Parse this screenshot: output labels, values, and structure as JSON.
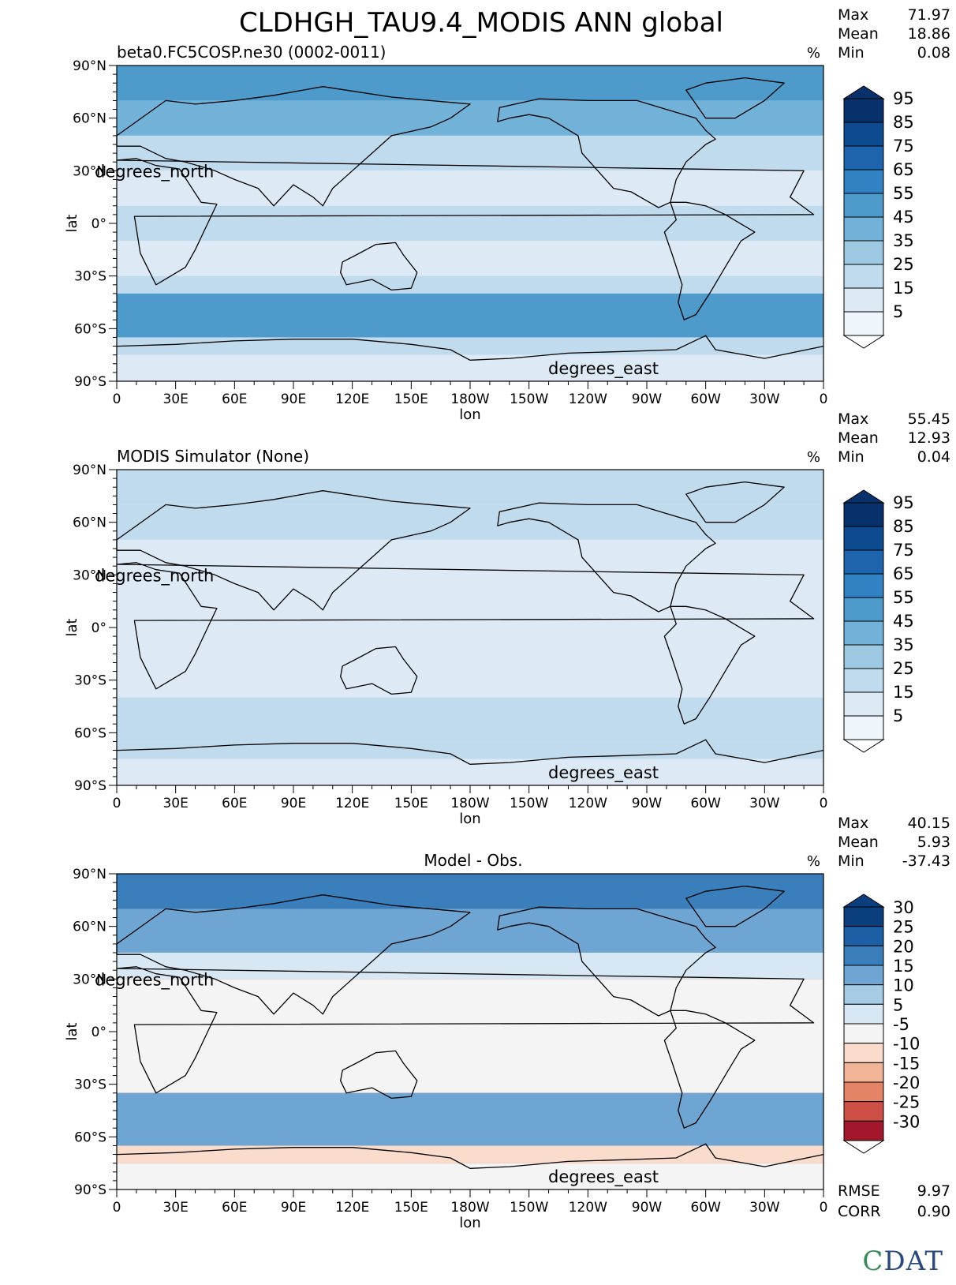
{
  "figure": {
    "title": "CLDHGH_TAU9.4_MODIS ANN global",
    "logo_letters": [
      "C",
      "DAT"
    ]
  },
  "chart_data": [
    {
      "type": "heatmap",
      "subtitle": "beta0.FC5COSP.ne30 (0002-0011)",
      "units": "%",
      "stats": [
        {
          "label": "Max",
          "value": "71.97"
        },
        {
          "label": "Mean",
          "value": "18.86"
        },
        {
          "label": "Min",
          "value": "0.08"
        }
      ],
      "xlabel": "lon",
      "ylabel": "lat",
      "x_ticks": [
        "0",
        "30E",
        "60E",
        "90E",
        "120E",
        "150E",
        "180W",
        "150W",
        "120W",
        "90W",
        "60W",
        "30W",
        "0"
      ],
      "y_ticks": [
        "90°N",
        "60°N",
        "30°N",
        "0°",
        "30°S",
        "60°S",
        "90°S"
      ],
      "x_units_label": "degrees_east",
      "y_units_label": "degrees_north",
      "colorbar": {
        "levels": [
          "95",
          "85",
          "75",
          "65",
          "55",
          "45",
          "35",
          "25",
          "15",
          "5"
        ],
        "colors": [
          "#08306b",
          "#0d4a8f",
          "#1f65ad",
          "#3182c2",
          "#4e9acb",
          "#73b2d8",
          "#9dc8e2",
          "#c1dbee",
          "#dde9f5",
          "#eef5fb"
        ]
      },
      "zonal_bands": [
        {
          "lat_range": [
            70,
            90
          ],
          "value": 45
        },
        {
          "lat_range": [
            50,
            70
          ],
          "value": 35
        },
        {
          "lat_range": [
            30,
            50
          ],
          "value": 20
        },
        {
          "lat_range": [
            10,
            30
          ],
          "value": 10
        },
        {
          "lat_range": [
            -10,
            10
          ],
          "value": 15
        },
        {
          "lat_range": [
            -30,
            -10
          ],
          "value": 10
        },
        {
          "lat_range": [
            -40,
            -30
          ],
          "value": 20
        },
        {
          "lat_range": [
            -65,
            -40
          ],
          "value": 45
        },
        {
          "lat_range": [
            -75,
            -65
          ],
          "value": 20
        },
        {
          "lat_range": [
            -90,
            -75
          ],
          "value": 5
        }
      ]
    },
    {
      "type": "heatmap",
      "subtitle": "MODIS Simulator (None)",
      "units": "%",
      "stats": [
        {
          "label": "Max",
          "value": "55.45"
        },
        {
          "label": "Mean",
          "value": "12.93"
        },
        {
          "label": "Min",
          "value": "0.04"
        }
      ],
      "xlabel": "lon",
      "ylabel": "lat",
      "x_ticks": [
        "0",
        "30E",
        "60E",
        "90E",
        "120E",
        "150E",
        "180W",
        "150W",
        "120W",
        "90W",
        "60W",
        "30W",
        "0"
      ],
      "y_ticks": [
        "90°N",
        "60°N",
        "30°N",
        "0°",
        "30°S",
        "60°S",
        "90°S"
      ],
      "x_units_label": "degrees_east",
      "y_units_label": "degrees_north",
      "colorbar": {
        "levels": [
          "95",
          "85",
          "75",
          "65",
          "55",
          "45",
          "35",
          "25",
          "15",
          "5"
        ],
        "colors": [
          "#08306b",
          "#0d4a8f",
          "#1f65ad",
          "#3182c2",
          "#4e9acb",
          "#73b2d8",
          "#9dc8e2",
          "#c1dbee",
          "#dde9f5",
          "#eef5fb"
        ]
      },
      "zonal_bands": [
        {
          "lat_range": [
            70,
            90
          ],
          "value": 20
        },
        {
          "lat_range": [
            50,
            70
          ],
          "value": 15
        },
        {
          "lat_range": [
            30,
            50
          ],
          "value": 10
        },
        {
          "lat_range": [
            10,
            30
          ],
          "value": 5
        },
        {
          "lat_range": [
            -10,
            10
          ],
          "value": 10
        },
        {
          "lat_range": [
            -30,
            -10
          ],
          "value": 5
        },
        {
          "lat_range": [
            -40,
            -30
          ],
          "value": 10
        },
        {
          "lat_range": [
            -65,
            -40
          ],
          "value": 20
        },
        {
          "lat_range": [
            -75,
            -65
          ],
          "value": 20
        },
        {
          "lat_range": [
            -90,
            -75
          ],
          "value": 10
        }
      ]
    },
    {
      "type": "heatmap",
      "subtitle": "Model - Obs.",
      "units": "%",
      "stats": [
        {
          "label": "Max",
          "value": "40.15"
        },
        {
          "label": "Mean",
          "value": "5.93"
        },
        {
          "label": "Min",
          "value": "-37.43"
        }
      ],
      "footer_stats": [
        {
          "label": "RMSE",
          "value": "9.97"
        },
        {
          "label": "CORR",
          "value": "0.90"
        }
      ],
      "xlabel": "lon",
      "ylabel": "lat",
      "x_ticks": [
        "0",
        "30E",
        "60E",
        "90E",
        "120E",
        "150E",
        "180W",
        "150W",
        "120W",
        "90W",
        "60W",
        "30W",
        "0"
      ],
      "y_ticks": [
        "90°N",
        "60°N",
        "30°N",
        "0°",
        "30°S",
        "60°S",
        "90°S"
      ],
      "x_units_label": "degrees_east",
      "y_units_label": "degrees_north",
      "colorbar": {
        "levels": [
          "30",
          "25",
          "20",
          "15",
          "10",
          "5",
          "-5",
          "-10",
          "-15",
          "-20",
          "-25",
          "-30"
        ],
        "colors": [
          "#0b3e7c",
          "#1d5fa5",
          "#3a7fbc",
          "#6ea5d3",
          "#a6cbe5",
          "#d7e7f3",
          "#f4f4f4",
          "#f9dccb",
          "#f2b497",
          "#e38466",
          "#cd4f45",
          "#a3172c"
        ]
      },
      "zonal_bands": [
        {
          "lat_range": [
            70,
            90
          ],
          "value": 22
        },
        {
          "lat_range": [
            45,
            70
          ],
          "value": 18
        },
        {
          "lat_range": [
            30,
            45
          ],
          "value": 8
        },
        {
          "lat_range": [
            -35,
            30
          ],
          "value": 0
        },
        {
          "lat_range": [
            -65,
            -35
          ],
          "value": 18
        },
        {
          "lat_range": [
            -75,
            -65
          ],
          "value": -10
        },
        {
          "lat_range": [
            -90,
            -75
          ],
          "value": 0
        }
      ]
    }
  ]
}
